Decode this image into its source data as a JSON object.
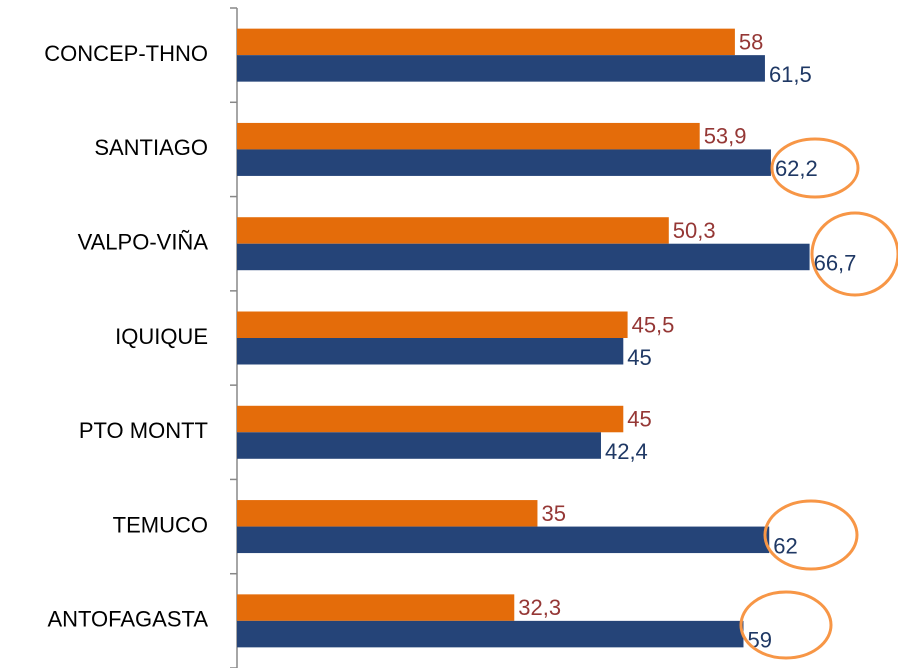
{
  "chart_data": {
    "type": "hbar",
    "categories": [
      "CONCEP-THNO",
      "SANTIAGO",
      "VALPO-VIÑA",
      "IQUIQUE",
      "PTO MONTT",
      "TEMUCO",
      "ANTOFAGASTA"
    ],
    "series": [
      {
        "color": "#e46c0a",
        "label_color": "#953735",
        "values": [
          58,
          53.9,
          50.3,
          45.5,
          45,
          35,
          32.3
        ],
        "value_labels": [
          "58",
          "53,9",
          "50,3",
          "45,5",
          "45",
          "35",
          "32,3"
        ]
      },
      {
        "color": "#254478",
        "label_color": "#1f3864",
        "values": [
          61.5,
          62.2,
          66.7,
          45,
          42.4,
          62,
          59
        ],
        "value_labels": [
          "61,5",
          "62,2",
          "66,7",
          "45",
          "42,4",
          "62",
          "59"
        ]
      }
    ],
    "xlim": [
      0,
      77
    ]
  }
}
